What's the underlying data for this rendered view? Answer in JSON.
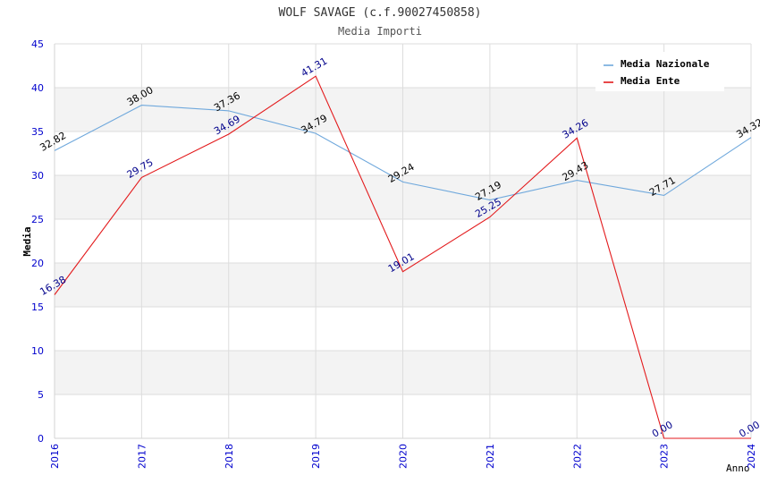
{
  "chart_data": {
    "type": "line",
    "title": "WOLF SAVAGE (c.f.90027450858)",
    "subtitle": "Media Importi",
    "xlabel": "Anno",
    "ylabel": "Media",
    "ylim": [
      0,
      45
    ],
    "yticks": [
      "0",
      "5",
      "10",
      "15",
      "20",
      "25",
      "30",
      "35",
      "40",
      "45"
    ],
    "categories": [
      "2016",
      "2017",
      "2018",
      "2019",
      "2020",
      "2021",
      "2022",
      "2023",
      "2024"
    ],
    "legend_position": "top-right",
    "series": [
      {
        "name": "Media Nazionale",
        "color": "#6fa8dc",
        "label_color": "#000000",
        "values": [
          32.82,
          38.0,
          37.36,
          34.79,
          29.24,
          27.19,
          29.43,
          27.71,
          34.32
        ],
        "labels": [
          "32.82",
          "38.00",
          "37.36",
          "34.79",
          "29.24",
          "27.19",
          "29.43",
          "27.71",
          "34.32"
        ]
      },
      {
        "name": "Media Ente",
        "color": "#e31a1c",
        "label_color": "#00008b",
        "values": [
          16.38,
          29.75,
          34.69,
          41.31,
          19.01,
          25.25,
          34.26,
          0.0,
          0.0
        ],
        "labels": [
          "16.38",
          "29.75",
          "34.69",
          "41.31",
          "19.01",
          "25.25",
          "34.26",
          "0.00",
          "0.00"
        ]
      }
    ]
  },
  "colors": {
    "tick_label": "#0000cd",
    "band": "#f3f3f3",
    "grid": "#dddddd",
    "title": "#333333",
    "axis_label": "#000000"
  }
}
